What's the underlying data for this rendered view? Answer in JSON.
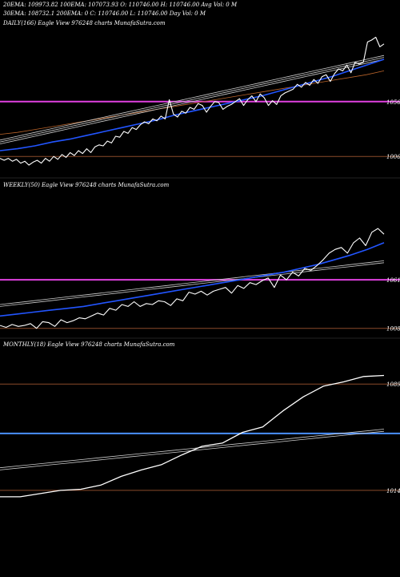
{
  "header": {
    "line1": "20EMA: 109973.82 100EMA: 107073.93 O: 110746.00 H: 110746.00 Avg Vol: 0  M",
    "line2": "30EMA: 108732.1   200EMA: 0          C: 110746.00 L: 110746.00 Day Vol: 0  M"
  },
  "colors": {
    "background": "#000000",
    "price": "#ffffff",
    "ema_fast": "#2255ff",
    "ema_band": "#cccccc",
    "ema_slow": "#b8632a",
    "level_magenta": "#e040e0",
    "level_brown": "#8a4a2a",
    "level_blue": "#4a90ff"
  },
  "chart_data": [
    {
      "type": "line",
      "label": "DAILY(166) Eagle  View  976248  charts MunafaSutra.com",
      "tick_labels": [
        "1056",
        "1006"
      ],
      "price": [
        17,
        15,
        17,
        14,
        16,
        12,
        14,
        10,
        13,
        15,
        12,
        17,
        14,
        19,
        16,
        21,
        18,
        23,
        20,
        25,
        22,
        27,
        23,
        29,
        31,
        30,
        35,
        33,
        40,
        39,
        45,
        43,
        49,
        47,
        52,
        55,
        53,
        58,
        56,
        61,
        58,
        78,
        63,
        60,
        66,
        64,
        70,
        68,
        74,
        72,
        65,
        71,
        76,
        75,
        68,
        71,
        73,
        76,
        79,
        72,
        78,
        82,
        76,
        84,
        80,
        72,
        77,
        73,
        82,
        85,
        87,
        89,
        94,
        91,
        96,
        93,
        99,
        95,
        102,
        104,
        97,
        105,
        110,
        108,
        114,
        106,
        117,
        115,
        117,
        138,
        140,
        143,
        133,
        136
      ],
      "ema_blue": [
        25,
        27,
        30,
        34,
        37,
        41,
        45,
        49,
        53,
        57,
        62,
        66,
        70,
        74,
        78,
        82,
        87,
        92,
        97,
        102,
        108,
        114,
        120
      ],
      "ema_band_a": [
        32,
        36,
        40,
        44,
        48,
        52,
        56,
        60,
        64,
        68,
        72,
        76,
        80,
        84,
        88,
        92,
        96,
        100,
        104,
        108,
        112,
        116,
        120
      ],
      "ema_band_b": [
        34,
        38,
        42,
        46,
        50,
        54,
        58,
        62,
        66,
        70,
        74,
        78,
        82,
        86,
        90,
        94,
        98,
        102,
        106,
        110,
        114,
        118,
        122
      ],
      "ema_band_c": [
        36,
        40,
        44,
        48,
        52,
        56,
        60,
        64,
        68,
        72,
        76,
        80,
        84,
        88,
        92,
        96,
        100,
        104,
        108,
        112,
        116,
        120,
        124
      ],
      "ema_orange": [
        42,
        44,
        47,
        50,
        53,
        56,
        59,
        62,
        65,
        68,
        71,
        74,
        77,
        80,
        83,
        86,
        89,
        92,
        95,
        98,
        101,
        104,
        108
      ],
      "levels": {
        "magenta": 76,
        "brown": 19
      }
    },
    {
      "type": "line",
      "label": "WEEKLY(50) Eagle  View  976248  charts MunafaSutra.com",
      "tick_labels": [
        "1061",
        "1008"
      ],
      "price": [
        10,
        8,
        11,
        9,
        10,
        12,
        7,
        14,
        13,
        9,
        16,
        13,
        15,
        18,
        17,
        20,
        23,
        21,
        28,
        26,
        32,
        30,
        35,
        30,
        33,
        32,
        36,
        35,
        31,
        38,
        36,
        45,
        43,
        46,
        42,
        46,
        48,
        50,
        44,
        52,
        49,
        55,
        53,
        57,
        60,
        50,
        63,
        58,
        66,
        62,
        70,
        68,
        73,
        79,
        86,
        90,
        92,
        86,
        97,
        102,
        94,
        108,
        112,
        106
      ],
      "ema_blue": [
        20,
        22,
        24,
        26,
        28,
        30,
        33,
        36,
        39,
        42,
        45,
        48,
        51,
        54,
        57,
        60,
        63,
        66,
        70,
        74,
        79,
        84,
        90,
        97
      ],
      "ema_band_a": [
        30,
        32,
        34,
        36,
        38,
        40,
        42,
        44,
        46,
        48,
        50,
        52,
        54,
        56,
        58,
        60,
        62,
        64,
        66,
        68,
        70,
        72,
        74,
        76
      ],
      "ema_band_b": [
        32,
        34,
        36,
        38,
        40,
        42,
        44,
        46,
        48,
        50,
        52,
        54,
        56,
        58,
        60,
        62,
        64,
        66,
        68,
        70,
        72,
        74,
        76,
        78
      ],
      "levels": {
        "magenta": 58,
        "brown": 7
      }
    },
    {
      "type": "line",
      "label": "MONTHLY(18) Eagle  View  976248  charts MunafaSutra.com",
      "tick_labels": [
        "1089",
        "1014"
      ],
      "price": [
        15,
        15,
        18,
        21,
        22,
        26,
        34,
        40,
        45,
        54,
        62,
        65,
        75,
        80,
        95,
        108,
        118,
        122,
        127,
        128
      ],
      "ema_band_a": [
        40,
        42,
        44,
        46,
        48,
        50,
        52,
        54,
        56,
        58,
        60,
        62,
        64,
        66,
        68,
        70,
        72,
        74,
        76
      ],
      "ema_band_b": [
        42,
        44,
        46,
        48,
        50,
        52,
        54,
        56,
        58,
        60,
        62,
        64,
        66,
        68,
        70,
        72,
        74,
        76,
        78
      ],
      "levels": {
        "blue": 74,
        "brown_top": 120,
        "brown_bottom": 21
      }
    }
  ]
}
